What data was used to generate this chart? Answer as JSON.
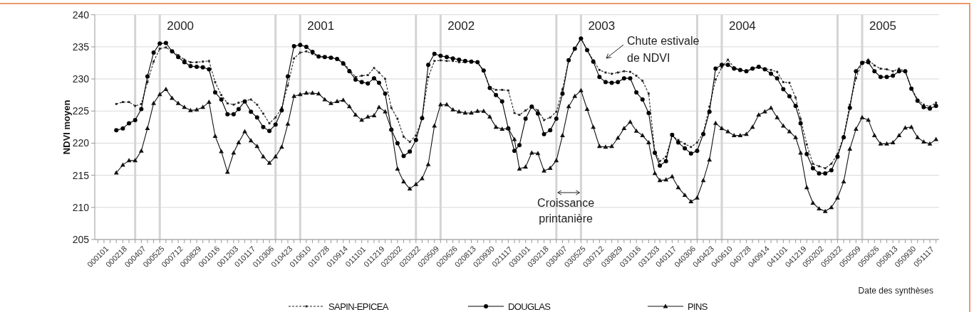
{
  "chart_data": {
    "type": "line",
    "ylabel": "NDVI moyen",
    "xlabel": "Date des synthèses",
    "x": [
      "2000-02-18",
      "2000-03-06",
      "2000-03-22",
      "2000-04-07",
      "2000-04-23",
      "2000-05-09",
      "2000-05-25",
      "2000-06-10",
      "2000-06-26",
      "2000-07-12",
      "2000-07-28",
      "2000-08-13",
      "2000-08-29",
      "2000-09-14",
      "2000-09-30",
      "2000-10-16",
      "2000-11-01",
      "2000-11-17",
      "2000-12-03",
      "2000-12-19",
      "2001-01-01",
      "2001-01-17",
      "2001-02-02",
      "2001-02-18",
      "2001-03-06",
      "2001-03-22",
      "2001-04-07",
      "2001-04-23",
      "2001-05-09",
      "2001-05-25",
      "2001-06-10",
      "2001-06-26",
      "2001-07-12",
      "2001-07-28",
      "2001-08-13",
      "2001-08-29",
      "2001-09-14",
      "2001-09-30",
      "2001-10-16",
      "2001-11-01",
      "2001-11-17",
      "2001-12-03",
      "2001-12-19",
      "2002-01-01",
      "2002-01-17",
      "2002-02-02",
      "2002-02-18",
      "2002-03-06",
      "2002-03-22",
      "2002-04-07",
      "2002-04-23",
      "2002-05-09",
      "2002-05-25",
      "2002-06-10",
      "2002-06-26",
      "2002-07-12",
      "2002-07-28",
      "2002-08-13",
      "2002-08-29",
      "2002-09-14",
      "2002-09-30",
      "2002-10-16",
      "2002-11-01",
      "2002-11-17",
      "2002-12-03",
      "2002-12-19",
      "2003-01-01",
      "2003-01-17",
      "2003-02-02",
      "2003-02-18",
      "2003-03-06",
      "2003-03-22",
      "2003-04-07",
      "2003-04-23",
      "2003-05-09",
      "2003-05-25",
      "2003-06-10",
      "2003-06-26",
      "2003-07-12",
      "2003-07-28",
      "2003-08-13",
      "2003-08-29",
      "2003-09-14",
      "2003-09-30",
      "2003-10-16",
      "2003-11-01",
      "2003-11-17",
      "2003-12-03",
      "2003-12-19",
      "2004-01-01",
      "2004-01-17",
      "2004-02-02",
      "2004-02-18",
      "2004-03-06",
      "2004-03-22",
      "2004-04-07",
      "2004-04-23",
      "2004-05-09",
      "2004-05-25",
      "2004-06-10",
      "2004-06-26",
      "2004-07-12",
      "2004-07-28",
      "2004-08-13",
      "2004-08-29",
      "2004-09-14",
      "2004-09-30",
      "2004-10-16",
      "2004-11-01",
      "2004-11-17",
      "2004-12-03",
      "2004-12-19",
      "2005-01-01",
      "2005-01-17",
      "2005-02-02",
      "2005-02-18",
      "2005-03-06",
      "2005-03-22",
      "2005-04-07",
      "2005-04-23",
      "2005-05-09",
      "2005-05-25",
      "2005-06-10",
      "2005-06-26",
      "2005-07-12",
      "2005-07-28",
      "2005-08-13",
      "2005-08-29",
      "2005-09-14",
      "2005-09-30",
      "2005-10-16",
      "2005-11-01",
      "2005-11-17",
      "2005-12-03",
      "2005-12-19"
    ],
    "series": [
      {
        "name": "SAPIN-EPICEA",
        "color": "#222222",
        "line_style": "dashed",
        "marker": "square",
        "values": [
          226.1,
          226.4,
          226.4,
          225.8,
          226.1,
          229.5,
          232.7,
          234.7,
          234.9,
          234.3,
          233.7,
          233.0,
          232.6,
          232.6,
          232.7,
          232.8,
          229.5,
          227.5,
          226.2,
          226.0,
          226.3,
          226.6,
          226.8,
          226.0,
          224.6,
          223.1,
          224.0,
          225.5,
          229.0,
          233.2,
          234.1,
          234.3,
          233.9,
          233.5,
          233.4,
          233.4,
          233.2,
          232.6,
          231.4,
          230.3,
          230.5,
          230.6,
          231.7,
          231.0,
          230.0,
          225.5,
          223.8,
          221.0,
          220.2,
          221.2,
          223.8,
          230.3,
          232.8,
          232.9,
          232.8,
          232.8,
          232.6,
          232.6,
          232.8,
          232.5,
          231.2,
          228.7,
          228.3,
          228.3,
          228.2,
          224.7,
          224.4,
          225.1,
          225.7,
          225.1,
          223.6,
          224.0,
          224.9,
          228.4,
          232.9,
          234.7,
          236.3,
          234.5,
          232.9,
          231.4,
          231.0,
          230.8,
          231.0,
          231.2,
          231.1,
          230.5,
          229.7,
          227.7,
          218.7,
          217.2,
          217.9,
          221.1,
          220.5,
          219.9,
          219.4,
          220.1,
          221.6,
          225.7,
          229.9,
          231.8,
          233.0,
          231.8,
          231.4,
          231.2,
          231.6,
          231.8,
          231.6,
          231.4,
          231.1,
          229.5,
          229.4,
          227.1,
          223.8,
          219.8,
          216.8,
          216.4,
          216.1,
          216.8,
          218.3,
          221.1,
          226.0,
          230.1,
          232.6,
          233.0,
          232.1,
          231.6,
          231.5,
          231.2,
          231.6,
          231.2,
          228.6,
          226.8,
          226.0,
          225.7,
          226.3
        ]
      },
      {
        "name": "DOUGLAS",
        "color": "#000000",
        "line_style": "solid",
        "marker": "circle",
        "values": [
          222.0,
          222.3,
          223.1,
          223.6,
          225.3,
          230.4,
          234.1,
          235.5,
          235.6,
          234.3,
          233.4,
          232.6,
          232.0,
          231.9,
          231.8,
          231.5,
          227.9,
          226.8,
          224.5,
          224.5,
          225.3,
          226.5,
          224.9,
          224.0,
          222.5,
          221.9,
          222.9,
          225.1,
          230.4,
          235.1,
          235.3,
          235.0,
          234.2,
          233.5,
          233.4,
          233.3,
          233.1,
          232.4,
          231.2,
          229.9,
          229.5,
          229.3,
          230.1,
          229.4,
          227.7,
          222.1,
          220.0,
          218.0,
          218.7,
          220.5,
          223.9,
          232.2,
          233.9,
          233.6,
          233.4,
          233.2,
          233.0,
          232.8,
          232.7,
          232.6,
          231.3,
          228.6,
          227.5,
          226.5,
          222.3,
          218.8,
          219.7,
          223.8,
          225.7,
          224.6,
          221.4,
          222.0,
          223.8,
          227.7,
          232.9,
          234.7,
          236.3,
          234.5,
          232.7,
          230.3,
          229.5,
          229.4,
          229.5,
          230.1,
          230.1,
          227.9,
          226.8,
          224.7,
          218.5,
          216.5,
          217.2,
          221.3,
          220.1,
          219.2,
          218.4,
          218.8,
          221.4,
          224.9,
          231.6,
          232.2,
          232.2,
          231.6,
          231.4,
          231.2,
          231.6,
          231.9,
          231.5,
          230.8,
          230.1,
          228.4,
          227.3,
          225.8,
          223.1,
          218.3,
          216.1,
          215.3,
          215.3,
          215.8,
          217.9,
          220.9,
          225.5,
          231.2,
          232.5,
          232.6,
          231.2,
          230.3,
          230.3,
          230.5,
          231.2,
          231.2,
          228.5,
          226.6,
          225.6,
          225.4,
          225.8
        ]
      },
      {
        "name": "PINS",
        "color": "#111111",
        "line_style": "solid",
        "marker": "triangle",
        "values": [
          215.4,
          216.6,
          217.3,
          217.3,
          218.8,
          222.3,
          226.2,
          227.6,
          228.4,
          227.0,
          226.2,
          225.6,
          225.1,
          225.2,
          225.6,
          226.4,
          221.1,
          218.7,
          215.5,
          218.5,
          220.1,
          221.8,
          220.4,
          219.5,
          217.9,
          216.9,
          217.9,
          219.4,
          223.0,
          227.3,
          227.6,
          227.8,
          227.8,
          227.7,
          226.8,
          226.2,
          226.5,
          226.7,
          225.7,
          224.4,
          223.6,
          224.1,
          224.3,
          225.6,
          224.9,
          222.2,
          216.0,
          214.0,
          212.9,
          213.6,
          214.5,
          216.7,
          222.7,
          226.0,
          226.0,
          225.2,
          224.9,
          224.7,
          224.7,
          225.0,
          225.0,
          224.1,
          222.5,
          222.2,
          222.3,
          220.6,
          216.0,
          216.3,
          218.5,
          218.4,
          215.7,
          216.1,
          217.3,
          221.2,
          225.7,
          227.3,
          228.2,
          225.3,
          222.5,
          219.5,
          219.4,
          219.5,
          220.8,
          222.3,
          223.3,
          221.9,
          221.2,
          220.1,
          215.3,
          214.2,
          214.3,
          214.8,
          213.1,
          211.9,
          210.9,
          211.5,
          214.2,
          217.4,
          223.1,
          222.3,
          221.8,
          221.2,
          221.2,
          221.4,
          222.5,
          224.4,
          224.9,
          225.5,
          224.0,
          222.7,
          221.8,
          220.9,
          218.5,
          213.1,
          210.7,
          209.8,
          209.4,
          210.0,
          211.5,
          214.0,
          219.1,
          222.2,
          224.0,
          223.6,
          221.2,
          219.9,
          219.9,
          220.1,
          221.2,
          222.4,
          222.5,
          220.9,
          220.2,
          219.9,
          220.6
        ]
      }
    ],
    "xlim": [
      "1999-12-24",
      "2005-12-27"
    ],
    "xticks": [
      {
        "value": "2000-01-01",
        "label": "000101"
      },
      {
        "value": "2000-01-17",
        "label": null
      },
      {
        "value": "2000-02-02",
        "label": null
      },
      {
        "value": "2000-02-18",
        "label": "000218"
      },
      {
        "value": "2000-03-06",
        "label": null
      },
      {
        "value": "2000-03-22",
        "label": null
      },
      {
        "value": "2000-04-07",
        "label": "000407"
      },
      {
        "value": "2000-04-23",
        "label": null
      },
      {
        "value": "2000-05-09",
        "label": null
      },
      {
        "value": "2000-05-25",
        "label": "000525"
      },
      {
        "value": "2000-06-10",
        "label": null
      },
      {
        "value": "2000-06-26",
        "label": null
      },
      {
        "value": "2000-07-12",
        "label": "000712"
      },
      {
        "value": "2000-07-28",
        "label": null
      },
      {
        "value": "2000-08-13",
        "label": null
      },
      {
        "value": "2000-08-29",
        "label": "000829"
      },
      {
        "value": "2000-09-14",
        "label": null
      },
      {
        "value": "2000-09-30",
        "label": null
      },
      {
        "value": "2000-10-16",
        "label": "001016"
      },
      {
        "value": "2000-11-01",
        "label": null
      },
      {
        "value": "2000-11-17",
        "label": null
      },
      {
        "value": "2000-12-03",
        "label": "001203"
      },
      {
        "value": "2000-12-19",
        "label": null
      },
      {
        "value": "2001-01-01",
        "label": null
      },
      {
        "value": "2001-01-17",
        "label": "010117"
      },
      {
        "value": "2001-02-02",
        "label": null
      },
      {
        "value": "2001-02-18",
        "label": null
      },
      {
        "value": "2001-03-06",
        "label": "010306"
      },
      {
        "value": "2001-03-22",
        "label": null
      },
      {
        "value": "2001-04-07",
        "label": null
      },
      {
        "value": "2001-04-23",
        "label": "010423"
      },
      {
        "value": "2001-05-09",
        "label": null
      },
      {
        "value": "2001-05-25",
        "label": null
      },
      {
        "value": "2001-06-10",
        "label": "010610"
      },
      {
        "value": "2001-06-26",
        "label": null
      },
      {
        "value": "2001-07-12",
        "label": null
      },
      {
        "value": "2001-07-28",
        "label": "010728"
      },
      {
        "value": "2001-08-13",
        "label": null
      },
      {
        "value": "2001-08-29",
        "label": null
      },
      {
        "value": "2001-09-14",
        "label": "010914"
      },
      {
        "value": "2001-09-30",
        "label": null
      },
      {
        "value": "2001-10-16",
        "label": null
      },
      {
        "value": "2001-11-01",
        "label": "011101"
      },
      {
        "value": "2001-11-17",
        "label": null
      },
      {
        "value": "2001-12-03",
        "label": null
      },
      {
        "value": "2001-12-19",
        "label": "011219"
      },
      {
        "value": "2002-01-01",
        "label": null
      },
      {
        "value": "2002-01-17",
        "label": null
      },
      {
        "value": "2002-02-02",
        "label": "020202"
      },
      {
        "value": "2002-02-18",
        "label": null
      },
      {
        "value": "2002-03-06",
        "label": null
      },
      {
        "value": "2002-03-22",
        "label": "020322"
      },
      {
        "value": "2002-04-07",
        "label": null
      },
      {
        "value": "2002-04-23",
        "label": null
      },
      {
        "value": "2002-05-09",
        "label": "020509"
      },
      {
        "value": "2002-05-25",
        "label": null
      },
      {
        "value": "2002-06-10",
        "label": null
      },
      {
        "value": "2002-06-26",
        "label": "020626"
      },
      {
        "value": "2002-07-12",
        "label": null
      },
      {
        "value": "2002-07-28",
        "label": null
      },
      {
        "value": "2002-08-13",
        "label": "020813"
      },
      {
        "value": "2002-08-29",
        "label": null
      },
      {
        "value": "2002-09-14",
        "label": null
      },
      {
        "value": "2002-09-30",
        "label": "020930"
      },
      {
        "value": "2002-10-16",
        "label": null
      },
      {
        "value": "2002-11-01",
        "label": null
      },
      {
        "value": "2002-11-17",
        "label": "021117"
      },
      {
        "value": "2002-12-03",
        "label": null
      },
      {
        "value": "2002-12-19",
        "label": null
      },
      {
        "value": "2003-01-01",
        "label": "030101"
      },
      {
        "value": "2003-01-17",
        "label": null
      },
      {
        "value": "2003-02-02",
        "label": null
      },
      {
        "value": "2003-02-18",
        "label": "030218"
      },
      {
        "value": "2003-03-06",
        "label": null
      },
      {
        "value": "2003-03-22",
        "label": null
      },
      {
        "value": "2003-04-07",
        "label": "030407"
      },
      {
        "value": "2003-04-23",
        "label": null
      },
      {
        "value": "2003-05-09",
        "label": null
      },
      {
        "value": "2003-05-25",
        "label": "030525"
      },
      {
        "value": "2003-06-10",
        "label": null
      },
      {
        "value": "2003-06-26",
        "label": null
      },
      {
        "value": "2003-07-12",
        "label": "030712"
      },
      {
        "value": "2003-07-28",
        "label": null
      },
      {
        "value": "2003-08-13",
        "label": null
      },
      {
        "value": "2003-08-29",
        "label": "030829"
      },
      {
        "value": "2003-09-14",
        "label": null
      },
      {
        "value": "2003-09-30",
        "label": null
      },
      {
        "value": "2003-10-16",
        "label": "031016"
      },
      {
        "value": "2003-11-01",
        "label": null
      },
      {
        "value": "2003-11-17",
        "label": null
      },
      {
        "value": "2003-12-03",
        "label": "031203"
      },
      {
        "value": "2003-12-19",
        "label": null
      },
      {
        "value": "2004-01-01",
        "label": null
      },
      {
        "value": "2004-01-17",
        "label": "040117"
      },
      {
        "value": "2004-02-02",
        "label": null
      },
      {
        "value": "2004-02-18",
        "label": null
      },
      {
        "value": "2004-03-06",
        "label": "040306"
      },
      {
        "value": "2004-03-22",
        "label": null
      },
      {
        "value": "2004-04-07",
        "label": null
      },
      {
        "value": "2004-04-23",
        "label": "040423"
      },
      {
        "value": "2004-05-09",
        "label": null
      },
      {
        "value": "2004-05-25",
        "label": null
      },
      {
        "value": "2004-06-10",
        "label": "040610"
      },
      {
        "value": "2004-06-26",
        "label": null
      },
      {
        "value": "2004-07-12",
        "label": null
      },
      {
        "value": "2004-07-28",
        "label": "040728"
      },
      {
        "value": "2004-08-13",
        "label": null
      },
      {
        "value": "2004-08-29",
        "label": null
      },
      {
        "value": "2004-09-14",
        "label": "040914"
      },
      {
        "value": "2004-09-30",
        "label": null
      },
      {
        "value": "2004-10-16",
        "label": null
      },
      {
        "value": "2004-11-01",
        "label": "041101"
      },
      {
        "value": "2004-11-17",
        "label": null
      },
      {
        "value": "2004-12-03",
        "label": null
      },
      {
        "value": "2004-12-19",
        "label": "041219"
      },
      {
        "value": "2005-01-01",
        "label": null
      },
      {
        "value": "2005-01-17",
        "label": null
      },
      {
        "value": "2005-02-02",
        "label": "050202"
      },
      {
        "value": "2005-02-18",
        "label": null
      },
      {
        "value": "2005-03-06",
        "label": null
      },
      {
        "value": "2005-03-22",
        "label": "050322"
      },
      {
        "value": "2005-04-07",
        "label": null
      },
      {
        "value": "2005-04-23",
        "label": null
      },
      {
        "value": "2005-05-09",
        "label": "050509"
      },
      {
        "value": "2005-05-25",
        "label": null
      },
      {
        "value": "2005-06-10",
        "label": null
      },
      {
        "value": "2005-06-26",
        "label": "050626"
      },
      {
        "value": "2005-07-12",
        "label": null
      },
      {
        "value": "2005-07-28",
        "label": null
      },
      {
        "value": "2005-08-13",
        "label": "050813"
      },
      {
        "value": "2005-08-29",
        "label": null
      },
      {
        "value": "2005-09-14",
        "label": null
      },
      {
        "value": "2005-09-30",
        "label": "050930"
      },
      {
        "value": "2005-10-16",
        "label": null
      },
      {
        "value": "2005-11-01",
        "label": null
      },
      {
        "value": "2005-11-17",
        "label": "051117"
      },
      {
        "value": "2005-12-03",
        "label": null
      },
      {
        "value": "2005-12-19",
        "label": null
      }
    ],
    "ylim": [
      205,
      240
    ],
    "yticks": [
      205,
      210,
      215,
      220,
      225,
      230,
      235,
      240
    ],
    "grid": "y",
    "legend": "bottom",
    "ref_lines": [
      {
        "axis": "x",
        "value": "2000-04-07",
        "color": "#d4d4d4"
      },
      {
        "axis": "x",
        "value": "2000-06-10",
        "color": "#d4d4d4"
      },
      {
        "axis": "x",
        "value": "2001-04-07",
        "color": "#d4d4d4"
      },
      {
        "axis": "x",
        "value": "2001-06-10",
        "color": "#d4d4d4"
      },
      {
        "axis": "x",
        "value": "2002-04-07",
        "color": "#d4d4d4"
      },
      {
        "axis": "x",
        "value": "2002-06-10",
        "color": "#d4d4d4"
      },
      {
        "axis": "x",
        "value": "2003-04-07",
        "color": "#d4d4d4"
      },
      {
        "axis": "x",
        "value": "2003-06-10",
        "color": "#d4d4d4"
      },
      {
        "axis": "x",
        "value": "2004-04-07",
        "color": "#d4d4d4"
      },
      {
        "axis": "x",
        "value": "2004-06-10",
        "color": "#d4d4d4"
      },
      {
        "axis": "x",
        "value": "2005-04-07",
        "color": "#d4d4d4"
      },
      {
        "axis": "x",
        "value": "2005-06-10",
        "color": "#d4d4d4"
      }
    ],
    "annotations": [
      "2000",
      "2001",
      "2002",
      "2003",
      "2004",
      "2005",
      "Chute estivale\nde NDVI",
      "Croissance\nprintanière"
    ]
  }
}
